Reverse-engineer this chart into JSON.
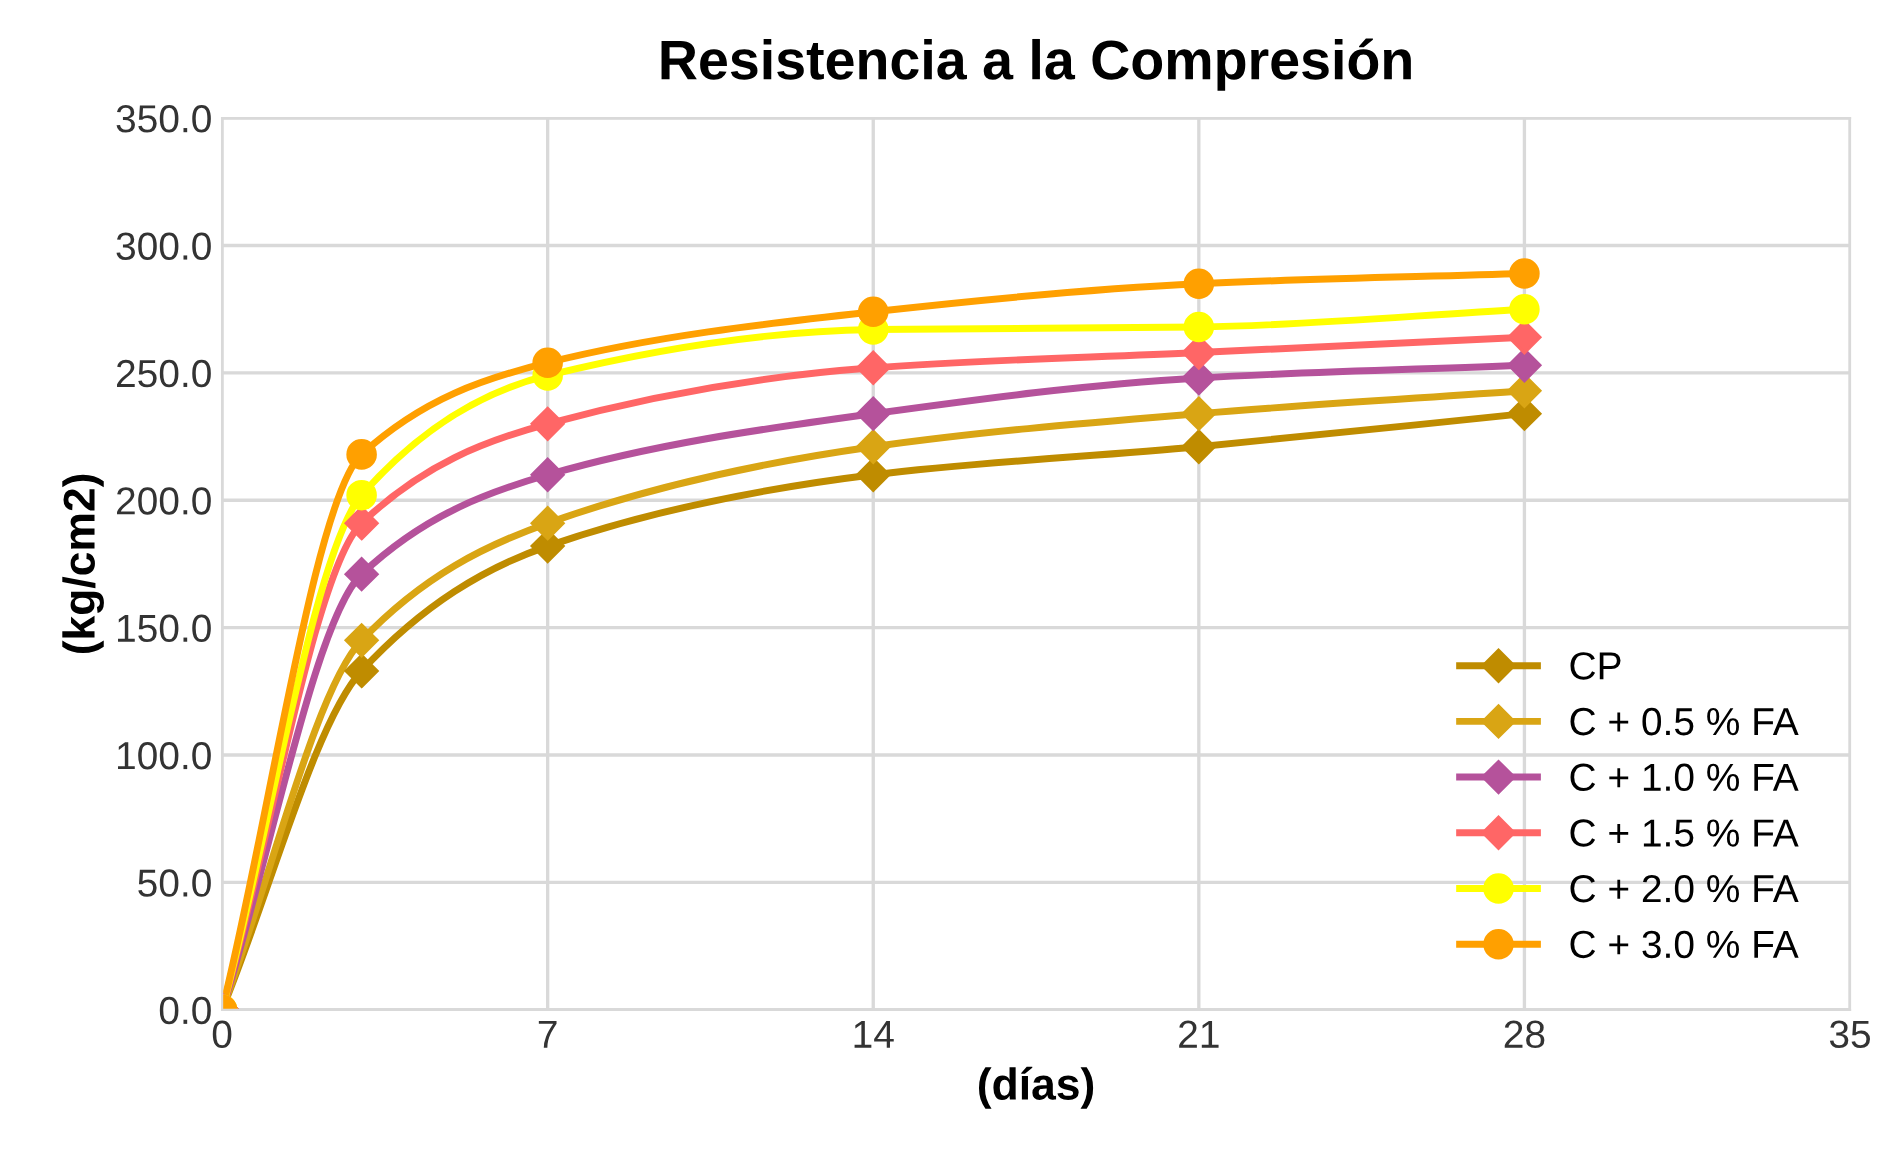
{
  "chart_data": {
    "type": "line",
    "title": "Resistencia a la Compresión",
    "xlabel": "(días)",
    "ylabel": "(kg/cm2)",
    "x": [
      0,
      3,
      7,
      14,
      21,
      28
    ],
    "series": [
      {
        "name": "CP",
        "color": "#bf8c00",
        "marker": "diamond",
        "values": [
          0,
          133,
          182,
          210,
          221,
          234
        ]
      },
      {
        "name": "C + 0.5 % FA",
        "color": "#d9a514",
        "marker": "diamond",
        "values": [
          0,
          145,
          191,
          221,
          234,
          243
        ]
      },
      {
        "name": "C + 1.0 % FA",
        "color": "#b5529b",
        "marker": "diamond",
        "values": [
          0,
          171,
          210,
          234,
          248,
          253
        ]
      },
      {
        "name": "C + 1.5 % FA",
        "color": "#ff6666",
        "marker": "diamond",
        "values": [
          0,
          191,
          230,
          252,
          258,
          264
        ]
      },
      {
        "name": "C + 2.0 % FA",
        "color": "#ffff00",
        "marker": "circle",
        "values": [
          0,
          202,
          249,
          267,
          268,
          275
        ]
      },
      {
        "name": "C + 3.0 % FA",
        "color": "#ffa000",
        "marker": "circle",
        "values": [
          0,
          218,
          254,
          274,
          285,
          289
        ]
      }
    ],
    "xlim": [
      0,
      35
    ],
    "xticks": [
      0,
      7,
      14,
      21,
      28,
      35
    ],
    "ylim": [
      0,
      350
    ],
    "yticks": [
      {
        "value": 0,
        "label": "0.0"
      },
      {
        "value": 50,
        "label": "50.0"
      },
      {
        "value": 100,
        "label": "100.0"
      },
      {
        "value": 150,
        "label": "150.0"
      },
      {
        "value": 200,
        "label": "200.0"
      },
      {
        "value": 250,
        "label": "250.0"
      },
      {
        "value": 300,
        "label": "300.0"
      },
      {
        "value": 350,
        "label": "350.0"
      }
    ],
    "grid": true,
    "legend": "lower right",
    "line_style": "solid"
  }
}
